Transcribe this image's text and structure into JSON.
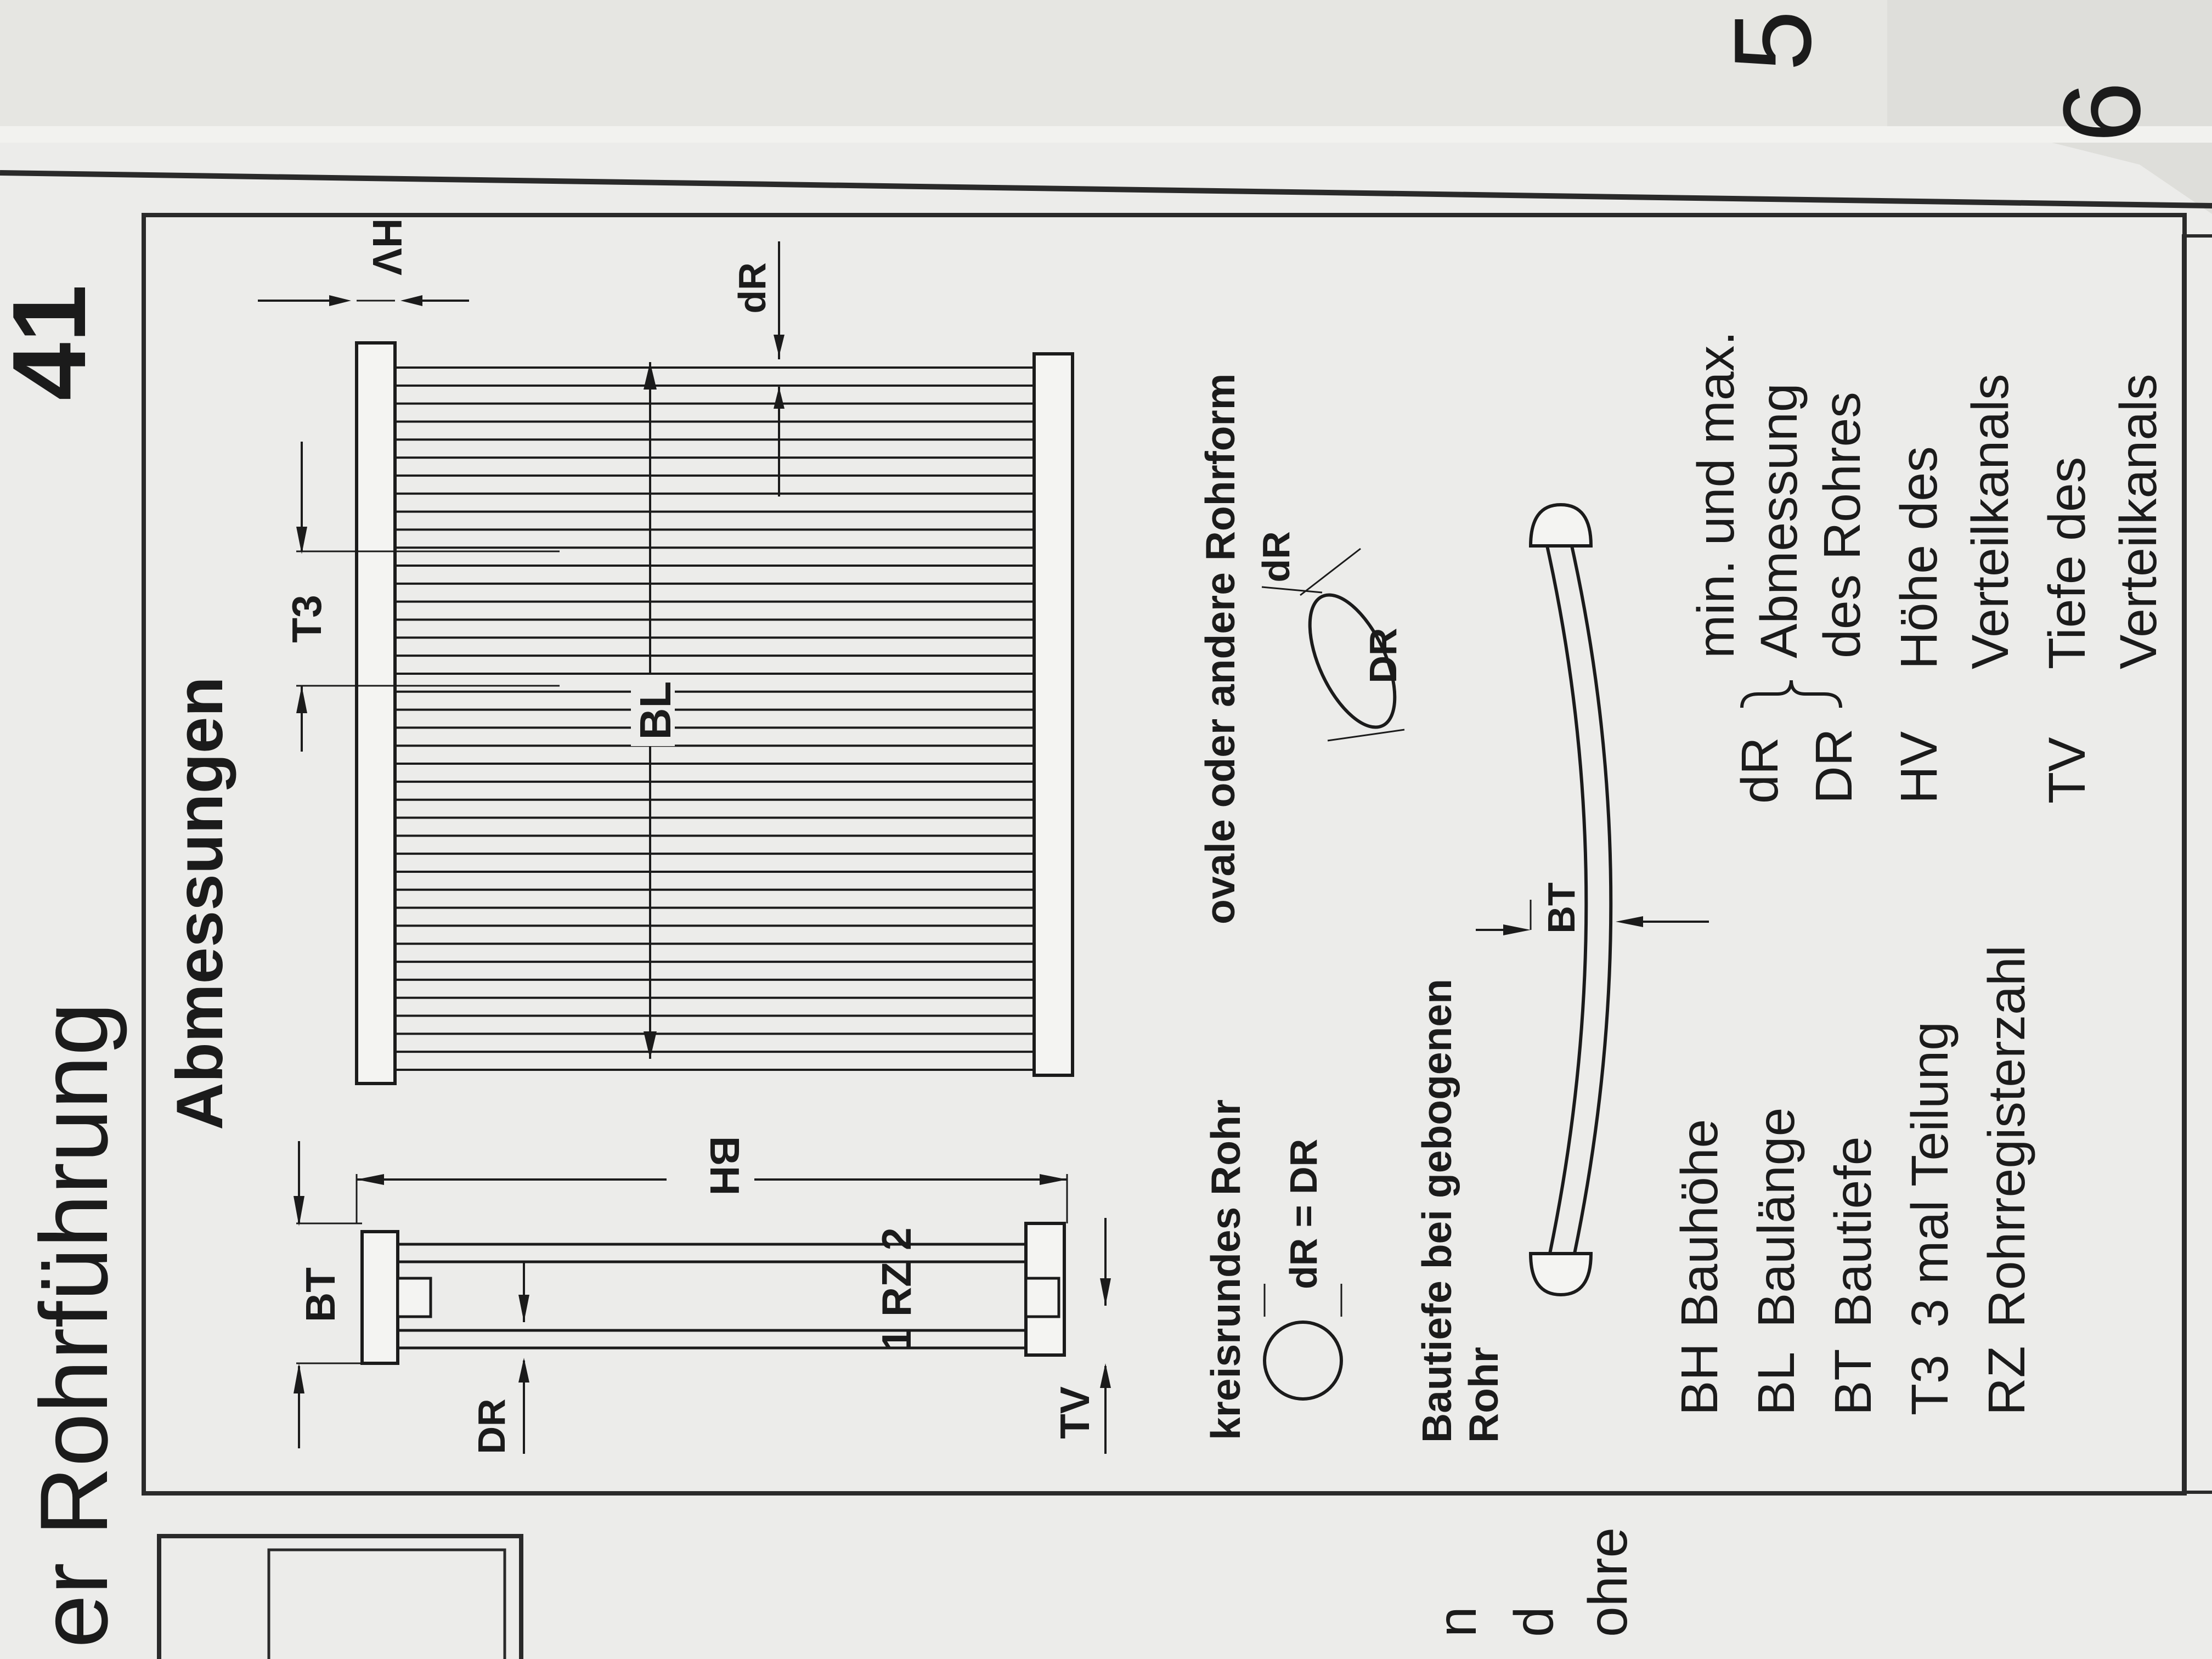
{
  "page": {
    "header_title": "er Rohrführung",
    "page_number": "41",
    "tab_numbers": [
      "5",
      "6"
    ],
    "left_edge_fragments": [
      "n",
      "d",
      "ohre"
    ]
  },
  "panel": {
    "title": "Abmessungen",
    "side_view": {
      "labels": {
        "bt": "BT",
        "bh": "BH",
        "rz": "1 RZ 2",
        "dr": "DR",
        "tv": "TV"
      }
    },
    "front_view": {
      "labels": {
        "hv": "HV",
        "t3": "T3",
        "bl": "BL",
        "dr_small": "dR"
      }
    },
    "round_pipe": {
      "title": "kreisrundes Rohr",
      "formula": "dR = DR"
    },
    "oval_pipe": {
      "title": "ovale oder andere Rohrform",
      "dr_small": "dR",
      "dr_big": "DR"
    },
    "bent_pipe": {
      "title_line1": "Bautiefe bei gebogenen",
      "title_line2": "Rohr",
      "bt": "BT"
    },
    "legend": [
      {
        "code": "BH",
        "desc": "Bauhöhe"
      },
      {
        "code": "BL",
        "desc": "Baulänge"
      },
      {
        "code": "BT",
        "desc": "Bautiefe"
      },
      {
        "code": "T3",
        "desc": "3 mal Teilung"
      },
      {
        "code": "RZ",
        "desc": "Rohrregisterzahl"
      }
    ],
    "legend_right": {
      "dr_small": "dR",
      "dr_big": "DR",
      "minmax_line1": "min. und max.",
      "minmax_line2": "Abmessung",
      "minmax_line3": "des Rohres",
      "hv_code": "HV",
      "hv_line1": "Höhe des",
      "hv_line2": "Verteilkanals",
      "tv_code": "TV",
      "tv_line1": "Tiefe des",
      "tv_line2": "Verteilkanals"
    }
  },
  "colors": {
    "paper": "#ececea",
    "ink": "#1b1b1b",
    "background": "#4a4a48"
  }
}
